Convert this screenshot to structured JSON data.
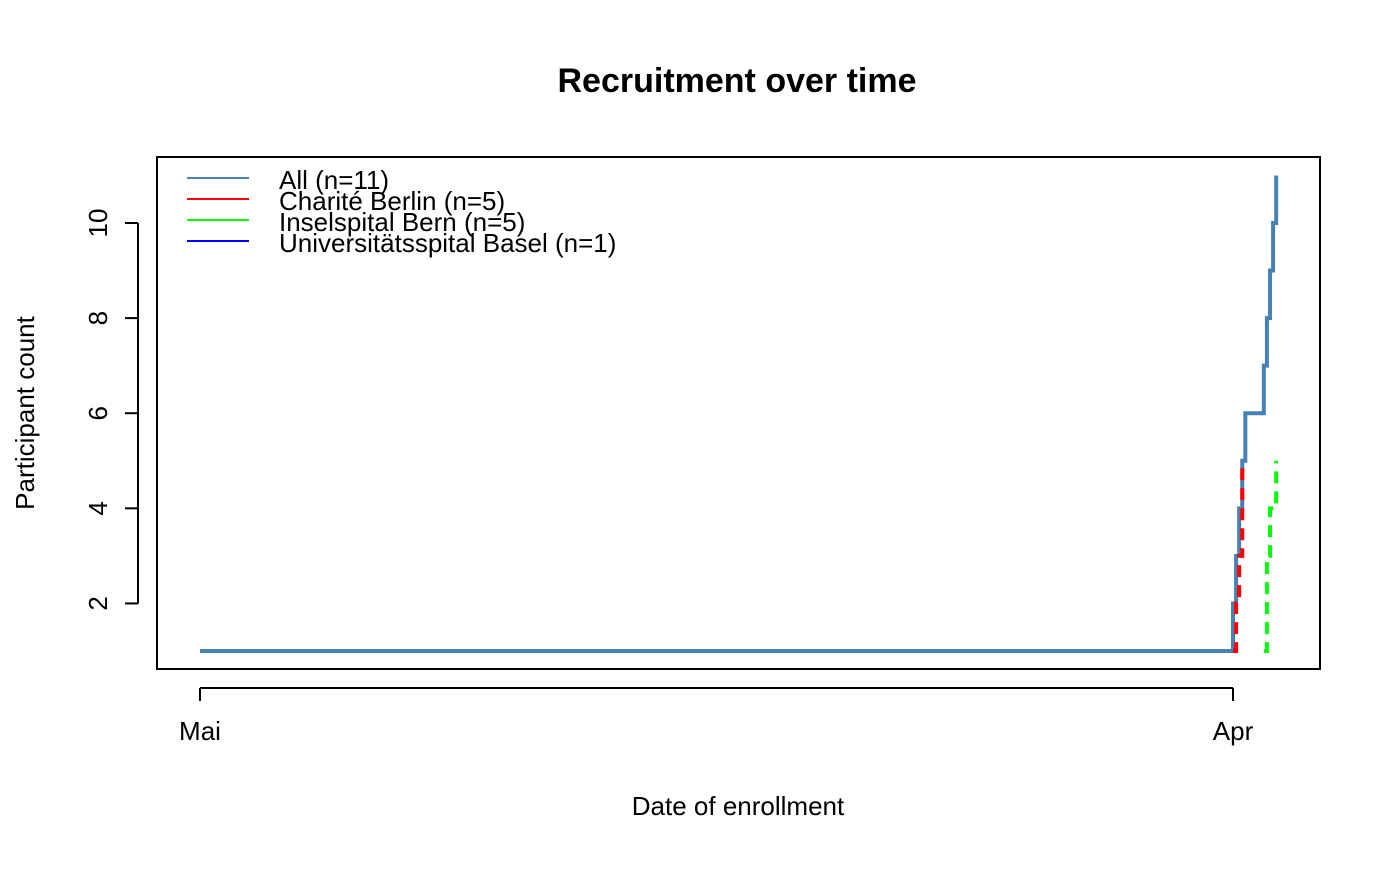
{
  "chart_data": {
    "type": "line",
    "step": true,
    "title": "Recruitment over time",
    "xlabel": "Date of enrollment",
    "ylabel": "Participant count",
    "x_ticks": [
      {
        "label": "Mai",
        "date": "2022-05-01"
      },
      {
        "label": "Apr",
        "date": "2023-04-01"
      }
    ],
    "y_ticks": [
      2,
      4,
      6,
      8,
      10
    ],
    "xlim": [
      "2022-04-28",
      "2023-04-25"
    ],
    "ylim": [
      0.6,
      11.4
    ],
    "grid": false,
    "legend_position": "top-left",
    "series": [
      {
        "name": "All (n=11)",
        "color": "#4682B4",
        "dash": "solid",
        "points": [
          {
            "x": "2022-05-01",
            "y": 1
          },
          {
            "x": "2023-03-31",
            "y": 1
          },
          {
            "x": "2023-04-01",
            "y": 2
          },
          {
            "x": "2023-04-02",
            "y": 3
          },
          {
            "x": "2023-04-03",
            "y": 4
          },
          {
            "x": "2023-04-04",
            "y": 5
          },
          {
            "x": "2023-04-05",
            "y": 6
          },
          {
            "x": "2023-04-11",
            "y": 6
          },
          {
            "x": "2023-04-11",
            "y": 7
          },
          {
            "x": "2023-04-12",
            "y": 8
          },
          {
            "x": "2023-04-13",
            "y": 9
          },
          {
            "x": "2023-04-14",
            "y": 10
          },
          {
            "x": "2023-04-15",
            "y": 11
          }
        ]
      },
      {
        "name": "Charité Berlin  (n=5)",
        "color": "#FF0000",
        "dash": "dashed",
        "points": [
          {
            "x": "2023-04-01",
            "y": 1
          },
          {
            "x": "2023-04-02",
            "y": 2
          },
          {
            "x": "2023-04-03",
            "y": 3
          },
          {
            "x": "2023-04-04",
            "y": 4
          },
          {
            "x": "2023-04-04",
            "y": 5
          }
        ]
      },
      {
        "name": "Inselspital Bern  (n=5)",
        "color": "#00FF00",
        "dash": "dashed",
        "points": [
          {
            "x": "2023-04-11",
            "y": 1
          },
          {
            "x": "2023-04-12",
            "y": 2
          },
          {
            "x": "2023-04-12",
            "y": 3
          },
          {
            "x": "2023-04-13",
            "y": 4
          },
          {
            "x": "2023-04-15",
            "y": 5
          }
        ]
      },
      {
        "name": "Universitätsspital Basel  (n=1)",
        "color": "#0000FF",
        "dash": "solid",
        "points": []
      }
    ]
  }
}
